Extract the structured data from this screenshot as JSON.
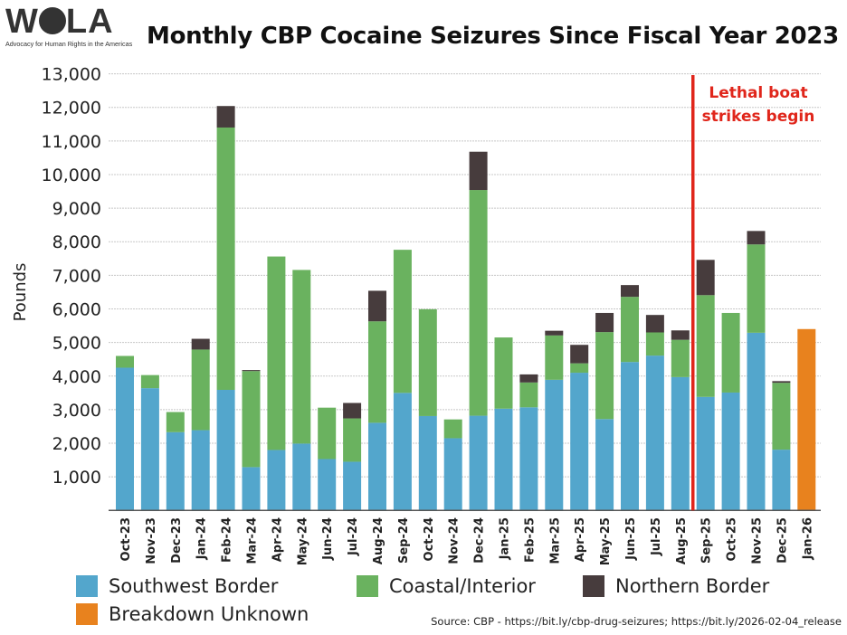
{
  "logo": {
    "text": "WOLA",
    "tagline": "Advocacy for Human Rights in the Americas"
  },
  "chart_data": {
    "type": "bar",
    "stacked": true,
    "title": "Monthly CBP Cocaine Seizures Since Fiscal Year 2023",
    "xlabel": "",
    "ylabel": "Pounds",
    "ylim": [
      0,
      13000
    ],
    "yticks": [
      "1,000",
      "2,000",
      "3,000",
      "4,000",
      "5,000",
      "6,000",
      "7,000",
      "8,000",
      "9,000",
      "10,000",
      "11,000",
      "12,000",
      "13,000"
    ],
    "grid": true,
    "legend_position": "bottom",
    "categories": [
      "Oct-23",
      "Nov-23",
      "Dec-23",
      "Jan-24",
      "Feb-24",
      "Mar-24",
      "Apr-24",
      "May-24",
      "Jun-24",
      "Jul-24",
      "Aug-24",
      "Sep-24",
      "Oct-24",
      "Nov-24",
      "Dec-24",
      "Jan-25",
      "Feb-25",
      "Mar-25",
      "Apr-25",
      "May-25",
      "Jun-25",
      "Jul-25",
      "Aug-25",
      "Sep-25",
      "Oct-25",
      "Nov-25",
      "Dec-25",
      "Jan-26"
    ],
    "series": [
      {
        "name": "Southwest Border",
        "color": "#53a6cc",
        "values": [
          4250,
          3640,
          2330,
          2390,
          3590,
          1290,
          1800,
          1990,
          1530,
          1450,
          2610,
          3500,
          2810,
          2150,
          2820,
          3030,
          3070,
          3890,
          4100,
          2720,
          4420,
          4610,
          3970,
          3380,
          3510,
          5290,
          1810,
          0
        ]
      },
      {
        "name": "Coastal/Interior",
        "color": "#6ab25f",
        "values": [
          350,
          390,
          600,
          2400,
          7810,
          2860,
          5760,
          5170,
          1530,
          1290,
          3020,
          4260,
          3180,
          560,
          6720,
          2120,
          740,
          1320,
          280,
          2590,
          1940,
          690,
          1110,
          3030,
          2370,
          2630,
          1990,
          0
        ]
      },
      {
        "name": "Northern Border",
        "color": "#473c3d",
        "values": [
          0,
          0,
          0,
          320,
          640,
          30,
          0,
          0,
          0,
          460,
          910,
          0,
          0,
          0,
          1140,
          0,
          240,
          140,
          550,
          570,
          350,
          520,
          280,
          1050,
          0,
          400,
          50,
          0
        ]
      },
      {
        "name": "Breakdown Unknown",
        "color": "#e8821e",
        "values": [
          0,
          0,
          0,
          0,
          0,
          0,
          0,
          0,
          0,
          0,
          0,
          0,
          0,
          0,
          0,
          0,
          0,
          0,
          0,
          0,
          0,
          0,
          0,
          0,
          0,
          0,
          0,
          5400
        ]
      }
    ],
    "annotations": [
      {
        "text_line1": "Lethal boat",
        "text_line2": "strikes begin",
        "color": "#e0261b",
        "between": [
          "Aug-25",
          "Sep-25"
        ]
      }
    ]
  },
  "source": "Source: CBP - https://bit.ly/cbp-drug-seizures; https://bit.ly/2026-02-04_release"
}
